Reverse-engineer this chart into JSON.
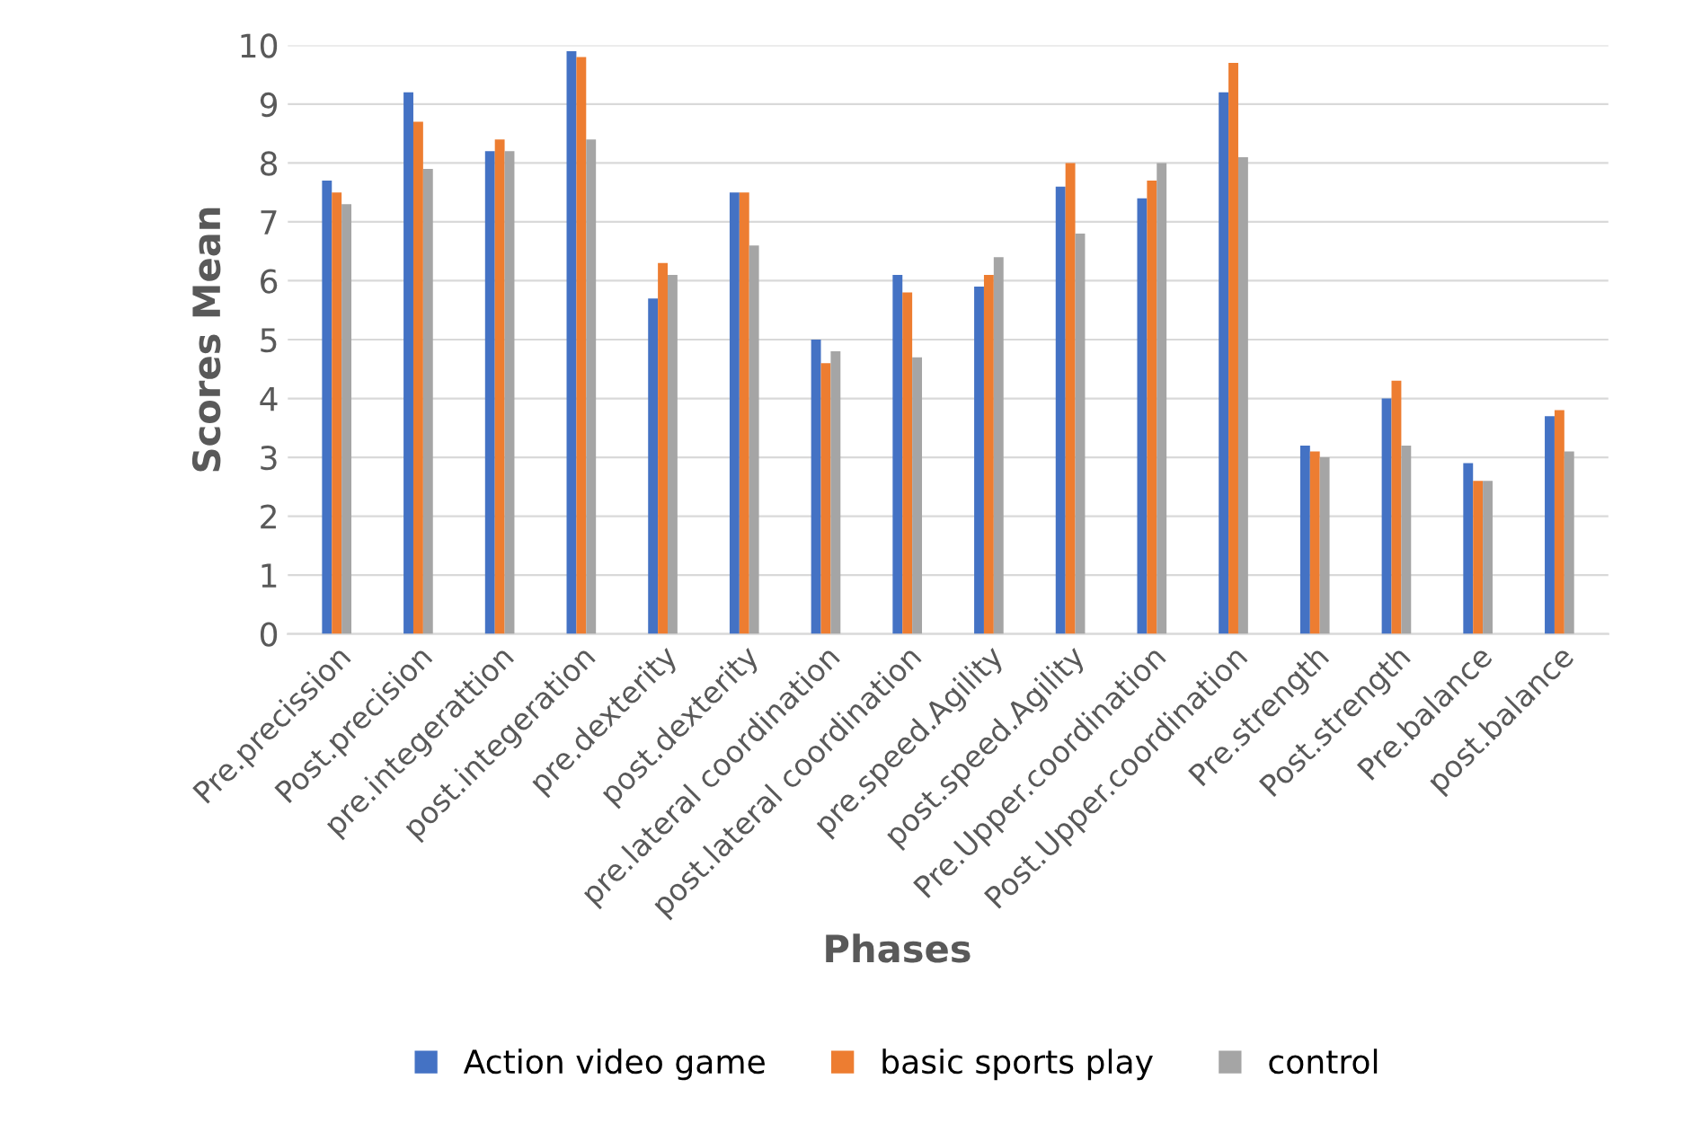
{
  "chart_data": {
    "type": "bar",
    "xlabel": "Phases",
    "ylabel": "Scores Mean",
    "categories": [
      "Pre.precission",
      "Post.precision",
      "pre.integerattion",
      "post.integeration",
      "pre.dexterity",
      "post.dexterity",
      "pre.lateral coordination",
      "post.lateral coordination",
      "pre.speed.Agility",
      "post.speed.Agility",
      "Pre.Upper.coordination",
      "Post.Upper.coordination",
      "Pre.strength",
      "Post.strength",
      "Pre.balance",
      "post.balance"
    ],
    "series": [
      {
        "name": "Action video game",
        "color": "#4472c4",
        "values": [
          7.7,
          9.2,
          8.2,
          9.9,
          5.7,
          7.5,
          5.0,
          6.1,
          5.9,
          7.6,
          7.4,
          9.2,
          3.2,
          4.0,
          2.9,
          3.7
        ]
      },
      {
        "name": "basic sports play",
        "color": "#ed7d31",
        "values": [
          7.5,
          8.7,
          8.4,
          9.8,
          6.3,
          7.5,
          4.6,
          5.8,
          6.1,
          8.0,
          7.7,
          9.7,
          3.1,
          4.3,
          2.6,
          3.8
        ]
      },
      {
        "name": "control",
        "color": "#a5a5a5",
        "values": [
          7.3,
          7.9,
          8.2,
          8.4,
          6.1,
          6.6,
          4.8,
          4.7,
          6.4,
          6.8,
          8.0,
          8.1,
          3.0,
          3.2,
          2.6,
          3.1
        ]
      }
    ],
    "ylim": [
      0,
      10
    ],
    "yticks": [
      0,
      1,
      2,
      3,
      4,
      5,
      6,
      7,
      8,
      9,
      10
    ],
    "grid": "y",
    "legend": "bottom"
  }
}
